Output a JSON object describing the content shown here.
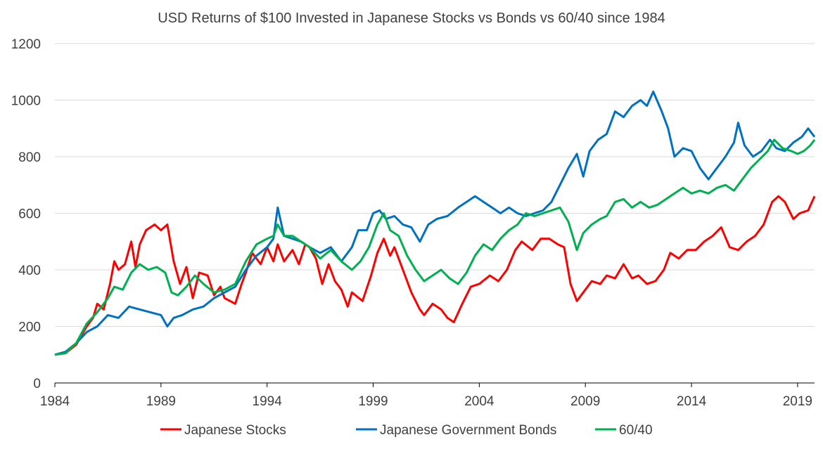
{
  "chart_data": {
    "type": "line",
    "title": "USD Returns of $100 Invested in Japanese Stocks vs Bonds vs 60/40 since 1984",
    "xlabel": "",
    "ylabel": "",
    "xlim": [
      1984,
      2019.8
    ],
    "ylim": [
      0,
      1200
    ],
    "yticks": [
      0,
      200,
      400,
      600,
      800,
      1000,
      1200
    ],
    "xticks": [
      1984,
      1989,
      1994,
      1999,
      2004,
      2009,
      2014,
      2019
    ],
    "grid": "horizontal",
    "legend": "bottom",
    "series": [
      {
        "name": "Japanese Stocks",
        "color": "#ff0000",
        "points": [
          [
            1984,
            100
          ],
          [
            1984.5,
            105
          ],
          [
            1985,
            135
          ],
          [
            1985.5,
            200
          ],
          [
            1985.8,
            230
          ],
          [
            1986,
            280
          ],
          [
            1986.3,
            260
          ],
          [
            1986.6,
            350
          ],
          [
            1986.8,
            430
          ],
          [
            1987,
            400
          ],
          [
            1987.3,
            420
          ],
          [
            1987.6,
            500
          ],
          [
            1987.8,
            410
          ],
          [
            1988,
            490
          ],
          [
            1988.3,
            540
          ],
          [
            1988.7,
            560
          ],
          [
            1989,
            540
          ],
          [
            1989.3,
            560
          ],
          [
            1989.6,
            430
          ],
          [
            1989.9,
            350
          ],
          [
            1990.2,
            410
          ],
          [
            1990.5,
            300
          ],
          [
            1990.8,
            390
          ],
          [
            1991.2,
            380
          ],
          [
            1991.5,
            310
          ],
          [
            1991.8,
            340
          ],
          [
            1992,
            300
          ],
          [
            1992.5,
            280
          ],
          [
            1992.8,
            350
          ],
          [
            1993,
            390
          ],
          [
            1993.3,
            460
          ],
          [
            1993.7,
            420
          ],
          [
            1994,
            480
          ],
          [
            1994.3,
            430
          ],
          [
            1994.5,
            490
          ],
          [
            1994.8,
            430
          ],
          [
            1995.2,
            470
          ],
          [
            1995.5,
            420
          ],
          [
            1995.8,
            490
          ],
          [
            1996,
            480
          ],
          [
            1996.3,
            440
          ],
          [
            1996.6,
            350
          ],
          [
            1996.9,
            420
          ],
          [
            1997.2,
            360
          ],
          [
            1997.5,
            330
          ],
          [
            1997.8,
            270
          ],
          [
            1998,
            320
          ],
          [
            1998.5,
            290
          ],
          [
            1998.9,
            380
          ],
          [
            1999.2,
            460
          ],
          [
            1999.5,
            510
          ],
          [
            1999.8,
            450
          ],
          [
            2000,
            480
          ],
          [
            2000.5,
            380
          ],
          [
            2000.8,
            320
          ],
          [
            2001.2,
            260
          ],
          [
            2001.4,
            240
          ],
          [
            2001.8,
            280
          ],
          [
            2002.2,
            260
          ],
          [
            2002.5,
            230
          ],
          [
            2002.8,
            215
          ],
          [
            2003.2,
            280
          ],
          [
            2003.6,
            340
          ],
          [
            2004,
            350
          ],
          [
            2004.5,
            380
          ],
          [
            2004.9,
            360
          ],
          [
            2005.3,
            400
          ],
          [
            2005.7,
            470
          ],
          [
            2006,
            500
          ],
          [
            2006.5,
            470
          ],
          [
            2006.9,
            510
          ],
          [
            2007.3,
            510
          ],
          [
            2007.7,
            490
          ],
          [
            2008,
            480
          ],
          [
            2008.3,
            350
          ],
          [
            2008.6,
            290
          ],
          [
            2008.9,
            320
          ],
          [
            2009.3,
            360
          ],
          [
            2009.7,
            350
          ],
          [
            2010,
            380
          ],
          [
            2010.4,
            370
          ],
          [
            2010.8,
            420
          ],
          [
            2011.2,
            370
          ],
          [
            2011.5,
            380
          ],
          [
            2011.9,
            350
          ],
          [
            2012.3,
            360
          ],
          [
            2012.7,
            400
          ],
          [
            2013,
            460
          ],
          [
            2013.4,
            440
          ],
          [
            2013.8,
            470
          ],
          [
            2014.2,
            470
          ],
          [
            2014.6,
            500
          ],
          [
            2015,
            520
          ],
          [
            2015.4,
            550
          ],
          [
            2015.8,
            480
          ],
          [
            2016.2,
            470
          ],
          [
            2016.6,
            500
          ],
          [
            2017,
            520
          ],
          [
            2017.4,
            560
          ],
          [
            2017.8,
            640
          ],
          [
            2018.1,
            660
          ],
          [
            2018.4,
            640
          ],
          [
            2018.8,
            580
          ],
          [
            2019.1,
            600
          ],
          [
            2019.5,
            610
          ],
          [
            2019.8,
            660
          ]
        ]
      },
      {
        "name": "Japanese Government Bonds",
        "color": "#0070c0",
        "points": [
          [
            1984,
            100
          ],
          [
            1984.5,
            110
          ],
          [
            1985,
            140
          ],
          [
            1985.5,
            180
          ],
          [
            1986,
            200
          ],
          [
            1986.5,
            240
          ],
          [
            1987,
            230
          ],
          [
            1987.5,
            270
          ],
          [
            1988,
            260
          ],
          [
            1988.5,
            250
          ],
          [
            1989,
            240
          ],
          [
            1989.3,
            200
          ],
          [
            1989.6,
            230
          ],
          [
            1990,
            240
          ],
          [
            1990.5,
            260
          ],
          [
            1991,
            270
          ],
          [
            1991.5,
            300
          ],
          [
            1992,
            320
          ],
          [
            1992.5,
            340
          ],
          [
            1993,
            400
          ],
          [
            1993.5,
            450
          ],
          [
            1994,
            480
          ],
          [
            1994.3,
            510
          ],
          [
            1994.5,
            620
          ],
          [
            1994.8,
            520
          ],
          [
            1995.2,
            510
          ],
          [
            1995.6,
            500
          ],
          [
            1996,
            480
          ],
          [
            1996.5,
            460
          ],
          [
            1997,
            480
          ],
          [
            1997.5,
            430
          ],
          [
            1998,
            480
          ],
          [
            1998.3,
            540
          ],
          [
            1998.7,
            540
          ],
          [
            1999,
            600
          ],
          [
            1999.3,
            610
          ],
          [
            1999.6,
            580
          ],
          [
            2000,
            590
          ],
          [
            2000.4,
            560
          ],
          [
            2000.8,
            550
          ],
          [
            2001.2,
            500
          ],
          [
            2001.6,
            560
          ],
          [
            2002,
            580
          ],
          [
            2002.5,
            590
          ],
          [
            2003,
            620
          ],
          [
            2003.4,
            640
          ],
          [
            2003.8,
            660
          ],
          [
            2004.2,
            640
          ],
          [
            2004.6,
            620
          ],
          [
            2005,
            600
          ],
          [
            2005.4,
            620
          ],
          [
            2005.8,
            600
          ],
          [
            2006.2,
            590
          ],
          [
            2006.6,
            600
          ],
          [
            2007,
            610
          ],
          [
            2007.4,
            640
          ],
          [
            2007.8,
            700
          ],
          [
            2008.2,
            760
          ],
          [
            2008.6,
            810
          ],
          [
            2008.9,
            730
          ],
          [
            2009.2,
            820
          ],
          [
            2009.6,
            860
          ],
          [
            2010,
            880
          ],
          [
            2010.4,
            960
          ],
          [
            2010.8,
            940
          ],
          [
            2011.2,
            980
          ],
          [
            2011.6,
            1000
          ],
          [
            2011.9,
            980
          ],
          [
            2012.2,
            1030
          ],
          [
            2012.6,
            960
          ],
          [
            2012.9,
            900
          ],
          [
            2013.2,
            800
          ],
          [
            2013.6,
            830
          ],
          [
            2014,
            820
          ],
          [
            2014.4,
            760
          ],
          [
            2014.8,
            720
          ],
          [
            2015.2,
            760
          ],
          [
            2015.6,
            800
          ],
          [
            2016,
            850
          ],
          [
            2016.2,
            920
          ],
          [
            2016.5,
            840
          ],
          [
            2016.9,
            800
          ],
          [
            2017.3,
            820
          ],
          [
            2017.7,
            860
          ],
          [
            2018,
            830
          ],
          [
            2018.4,
            820
          ],
          [
            2018.8,
            850
          ],
          [
            2019.2,
            870
          ],
          [
            2019.5,
            900
          ],
          [
            2019.8,
            870
          ]
        ]
      },
      {
        "name": "60/40",
        "color": "#00b050",
        "points": [
          [
            1984,
            100
          ],
          [
            1984.5,
            105
          ],
          [
            1985,
            140
          ],
          [
            1985.5,
            210
          ],
          [
            1986,
            250
          ],
          [
            1986.5,
            300
          ],
          [
            1986.8,
            340
          ],
          [
            1987.2,
            330
          ],
          [
            1987.6,
            390
          ],
          [
            1988,
            420
          ],
          [
            1988.4,
            400
          ],
          [
            1988.8,
            410
          ],
          [
            1989.2,
            390
          ],
          [
            1989.5,
            320
          ],
          [
            1989.8,
            310
          ],
          [
            1990.2,
            340
          ],
          [
            1990.6,
            380
          ],
          [
            1991,
            350
          ],
          [
            1991.5,
            320
          ],
          [
            1992,
            330
          ],
          [
            1992.5,
            350
          ],
          [
            1993,
            430
          ],
          [
            1993.5,
            490
          ],
          [
            1994,
            510
          ],
          [
            1994.3,
            520
          ],
          [
            1994.5,
            560
          ],
          [
            1994.8,
            520
          ],
          [
            1995.2,
            520
          ],
          [
            1995.6,
            500
          ],
          [
            1996,
            480
          ],
          [
            1996.5,
            440
          ],
          [
            1997,
            470
          ],
          [
            1997.5,
            430
          ],
          [
            1998,
            400
          ],
          [
            1998.4,
            430
          ],
          [
            1998.8,
            480
          ],
          [
            1999.2,
            560
          ],
          [
            1999.5,
            600
          ],
          [
            1999.8,
            540
          ],
          [
            2000.2,
            520
          ],
          [
            2000.6,
            450
          ],
          [
            2001,
            400
          ],
          [
            2001.4,
            360
          ],
          [
            2001.8,
            380
          ],
          [
            2002.2,
            400
          ],
          [
            2002.6,
            370
          ],
          [
            2003,
            350
          ],
          [
            2003.4,
            390
          ],
          [
            2003.8,
            450
          ],
          [
            2004.2,
            490
          ],
          [
            2004.6,
            470
          ],
          [
            2005,
            510
          ],
          [
            2005.4,
            540
          ],
          [
            2005.8,
            560
          ],
          [
            2006.2,
            600
          ],
          [
            2006.6,
            590
          ],
          [
            2007,
            600
          ],
          [
            2007.4,
            610
          ],
          [
            2007.8,
            620
          ],
          [
            2008.2,
            570
          ],
          [
            2008.6,
            470
          ],
          [
            2008.9,
            530
          ],
          [
            2009.3,
            560
          ],
          [
            2009.7,
            580
          ],
          [
            2010,
            590
          ],
          [
            2010.4,
            640
          ],
          [
            2010.8,
            650
          ],
          [
            2011.2,
            620
          ],
          [
            2011.6,
            640
          ],
          [
            2012,
            620
          ],
          [
            2012.4,
            630
          ],
          [
            2012.8,
            650
          ],
          [
            2013.2,
            670
          ],
          [
            2013.6,
            690
          ],
          [
            2014,
            670
          ],
          [
            2014.4,
            680
          ],
          [
            2014.8,
            670
          ],
          [
            2015.2,
            690
          ],
          [
            2015.6,
            700
          ],
          [
            2016,
            680
          ],
          [
            2016.4,
            720
          ],
          [
            2016.8,
            760
          ],
          [
            2017.2,
            790
          ],
          [
            2017.6,
            820
          ],
          [
            2017.9,
            860
          ],
          [
            2018.3,
            830
          ],
          [
            2018.7,
            820
          ],
          [
            2019,
            810
          ],
          [
            2019.3,
            820
          ],
          [
            2019.6,
            840
          ],
          [
            2019.8,
            860
          ]
        ]
      }
    ]
  }
}
